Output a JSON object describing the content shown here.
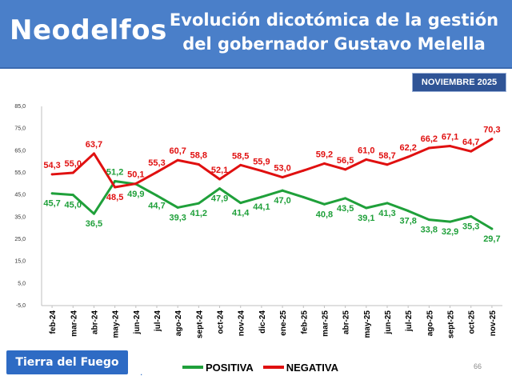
{
  "header": {
    "brand": "Neodelfos",
    "title_line1": "Evolución dicotómica de la gestión",
    "title_line2": "del gobernador Gustavo Melella"
  },
  "date_badge": "NOVIEMBRE 2025",
  "region_badge": "Tierra del Fuego",
  "page_number": "66",
  "colors": {
    "header_bg": "#4a7fc9",
    "positiva": "#1fa03a",
    "negativa": "#e01010",
    "badge": "#2f5496"
  },
  "chart_data": {
    "type": "line",
    "categories": [
      "feb-24",
      "mar-24",
      "abr-24",
      "may-24",
      "jun-24",
      "jul-24",
      "ago-24",
      "sept-24",
      "oct-24",
      "nov-24",
      "dic-24",
      "ene-25",
      "feb-25",
      "mar-25",
      "abr-25",
      "may-25",
      "jun-25",
      "jul-25",
      "ago-25",
      "sept-25",
      "oct-25",
      "nov-25"
    ],
    "ylim": [
      -5,
      85
    ],
    "yticks": [
      "85,0",
      "75,0",
      "65,0",
      "55,0",
      "45,0",
      "35,0",
      "25,0",
      "15,0",
      "5,0",
      "-5,0"
    ],
    "legend_position": "bottom",
    "grid": false,
    "series": [
      {
        "name": "POSITIVA",
        "color": "#1fa03a",
        "values": [
          45.7,
          45.0,
          36.5,
          51.2,
          49.9,
          44.7,
          39.3,
          41.2,
          47.9,
          41.4,
          44.1,
          47.0,
          44.0,
          40.8,
          43.5,
          39.1,
          41.3,
          37.8,
          33.8,
          32.9,
          35.3,
          29.7
        ],
        "labels": [
          "45,7",
          "45,0",
          "36,5",
          "51,2",
          "49,9",
          "44,7",
          "39,3",
          "41,2",
          "47,9",
          "41,4",
          "44,1",
          "47,0",
          "",
          "40,8",
          "43,5",
          "39,1",
          "41,3",
          "37,8",
          "33,8",
          "32,9",
          "35,3",
          "29,7"
        ]
      },
      {
        "name": "NEGATIVA",
        "color": "#e01010",
        "values": [
          54.3,
          55.0,
          63.7,
          48.5,
          50.1,
          55.3,
          60.7,
          58.8,
          52.1,
          58.5,
          55.9,
          53.0,
          56.0,
          59.2,
          56.5,
          61.0,
          58.7,
          62.2,
          66.2,
          67.1,
          64.7,
          70.3
        ],
        "labels": [
          "54,3",
          "55,0",
          "63,7",
          "48,5",
          "50,1",
          "55,3",
          "60,7",
          "58,8",
          "52,1",
          "58,5",
          "55,9",
          "53,0",
          "",
          "59,2",
          "56,5",
          "61,0",
          "58,7",
          "62,2",
          "66,2",
          "67,1",
          "64,7",
          "70,3"
        ]
      }
    ]
  }
}
